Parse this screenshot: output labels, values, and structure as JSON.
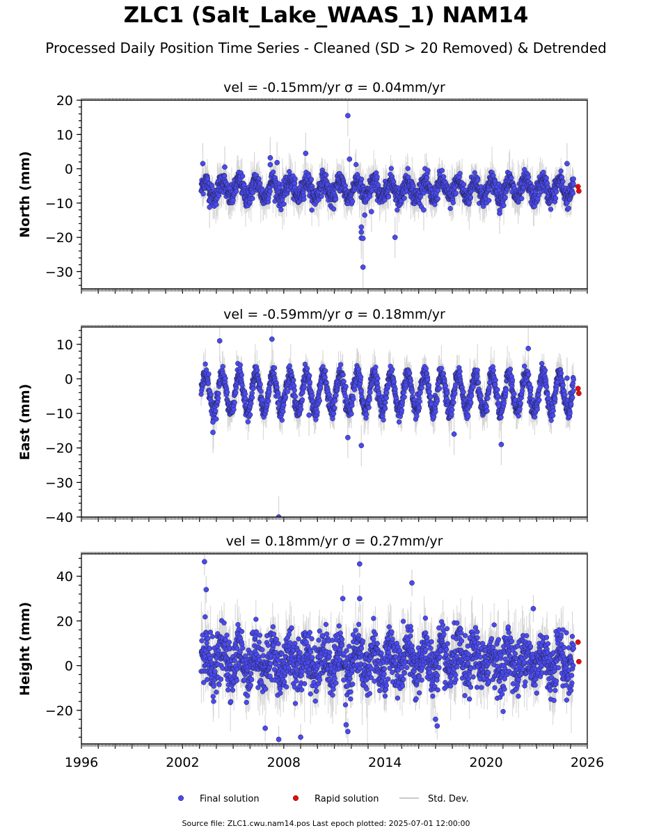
{
  "figure": {
    "title": "ZLC1 (Salt_Lake_WAAS_1) NAM14",
    "subtitle": "Processed Daily Position Time Series - Cleaned (SD > 20 Removed) & Detrended",
    "footer": "Source file: ZLC1.cwu.nam14.pos  Last epoch plotted: 2025-07-01 12:00:00"
  },
  "colors": {
    "final": "#4a4af0",
    "rapid": "#e01010",
    "stddev": "#b8b8b8",
    "marker_edge": "#202040"
  },
  "chart_data": [
    {
      "type": "scatter",
      "panel": "north",
      "title": "vel = -0.15mm/yr   σ = 0.04mm/yr",
      "ylabel": "North (mm)",
      "xlim": [
        1996,
        2026
      ],
      "ylim": [
        -35,
        20
      ],
      "xticks": [
        "1996",
        "2002",
        "2008",
        "2014",
        "2020",
        "2026"
      ],
      "yticks": [
        -30,
        -20,
        -10,
        0,
        10,
        20
      ],
      "xtick_labels_visible": false,
      "data_start": 2003.1,
      "data_end": 2025.2,
      "seasonal": {
        "mean": -6,
        "amplitude": 2.5,
        "noise_sd": 1.5
      },
      "error_bar_sd": 2.5,
      "series": [
        {
          "name": "Final solution",
          "outliers": [
            {
              "x": 2011.8,
              "y": 15.5
            },
            {
              "x": 2011.9,
              "y": 2.8
            },
            {
              "x": 2009.3,
              "y": 4.5
            },
            {
              "x": 2007.2,
              "y": 3.2
            },
            {
              "x": 2007.2,
              "y": 1.2
            },
            {
              "x": 2007.6,
              "y": 1.8
            },
            {
              "x": 2003.2,
              "y": 1.5
            },
            {
              "x": 2024.8,
              "y": 1.5
            },
            {
              "x": 2004.5,
              "y": 0.5
            },
            {
              "x": 2012.6,
              "y": -17
            },
            {
              "x": 2012.6,
              "y": -18.5
            },
            {
              "x": 2012.6,
              "y": -20.2
            },
            {
              "x": 2012.7,
              "y": -20.3
            },
            {
              "x": 2012.7,
              "y": -28.7
            },
            {
              "x": 2014.6,
              "y": -20
            },
            {
              "x": 2012.8,
              "y": -13.5
            },
            {
              "x": 2020.8,
              "y": -13
            },
            {
              "x": 2003.6,
              "y": -11.2
            },
            {
              "x": 2013.2,
              "y": -12.5
            },
            {
              "x": 2016.3,
              "y": -12
            }
          ]
        },
        {
          "name": "Rapid solution",
          "points": [
            {
              "x": 2025.45,
              "y": -5.2
            },
            {
              "x": 2025.5,
              "y": -6.5
            }
          ]
        }
      ]
    },
    {
      "type": "scatter",
      "panel": "east",
      "title": "vel = -0.59mm/yr   σ = 0.18mm/yr",
      "ylabel": "East (mm)",
      "xlim": [
        1996,
        2026
      ],
      "ylim": [
        -40,
        15
      ],
      "xticks": [
        "1996",
        "2002",
        "2008",
        "2014",
        "2020",
        "2026"
      ],
      "yticks": [
        -40,
        -30,
        -20,
        -10,
        0,
        10
      ],
      "xtick_labels_visible": false,
      "data_start": 2003.1,
      "data_end": 2025.2,
      "seasonal": {
        "mean": -4,
        "amplitude": 5.5,
        "noise_sd": 1.3
      },
      "error_bar_sd": 2.5,
      "series": [
        {
          "name": "Final solution",
          "outliers": [
            {
              "x": 2007.3,
              "y": 11.5
            },
            {
              "x": 2004.2,
              "y": 11
            },
            {
              "x": 2022.5,
              "y": 8.8
            },
            {
              "x": 2003.8,
              "y": -12.5
            },
            {
              "x": 2003.8,
              "y": -15.5
            },
            {
              "x": 2007.7,
              "y": -40
            },
            {
              "x": 2011.8,
              "y": -17
            },
            {
              "x": 2012.6,
              "y": -19.3
            },
            {
              "x": 2020.9,
              "y": -19
            },
            {
              "x": 2009.5,
              "y": -10.5
            },
            {
              "x": 2018.1,
              "y": -16
            },
            {
              "x": 2024.8,
              "y": 0.2
            }
          ]
        },
        {
          "name": "Rapid solution",
          "points": [
            {
              "x": 2025.45,
              "y": -2.8
            },
            {
              "x": 2025.5,
              "y": -4.2
            }
          ]
        }
      ]
    },
    {
      "type": "scatter",
      "panel": "height",
      "title": "vel = 0.18mm/yr   σ = 0.27mm/yr",
      "ylabel": "Height (mm)",
      "xlim": [
        1996,
        2026
      ],
      "ylim": [
        -35,
        50
      ],
      "xticks": [
        "1996",
        "2002",
        "2008",
        "2014",
        "2020",
        "2026"
      ],
      "yticks": [
        -20,
        0,
        20,
        40
      ],
      "xtick_labels_visible": true,
      "data_start": 2003.1,
      "data_end": 2025.2,
      "seasonal": {
        "mean": 2,
        "amplitude": 5,
        "noise_sd": 6
      },
      "error_bar_sd": 6,
      "series": [
        {
          "name": "Final solution",
          "outliers": [
            {
              "x": 2003.3,
              "y": 46.5
            },
            {
              "x": 2012.5,
              "y": 45.5
            },
            {
              "x": 2015.6,
              "y": 37
            },
            {
              "x": 2003.4,
              "y": 34
            },
            {
              "x": 2011.5,
              "y": 30
            },
            {
              "x": 2012.5,
              "y": 30
            },
            {
              "x": 2007.7,
              "y": -33
            },
            {
              "x": 2009.0,
              "y": -32
            },
            {
              "x": 2011.8,
              "y": -29.5
            },
            {
              "x": 2011.7,
              "y": -26.5
            },
            {
              "x": 2017.1,
              "y": -27
            },
            {
              "x": 2017.0,
              "y": -24
            },
            {
              "x": 2006.9,
              "y": -28
            },
            {
              "x": 2022.8,
              "y": 25.5
            }
          ]
        },
        {
          "name": "Rapid solution",
          "points": [
            {
              "x": 2025.45,
              "y": 10.5
            },
            {
              "x": 2025.5,
              "y": 1.8
            }
          ]
        }
      ]
    }
  ],
  "legend": {
    "placement": "bottom-center",
    "items": [
      {
        "label": "Final solution"
      },
      {
        "label": "Rapid solution"
      },
      {
        "label": "Std. Dev."
      }
    ]
  }
}
